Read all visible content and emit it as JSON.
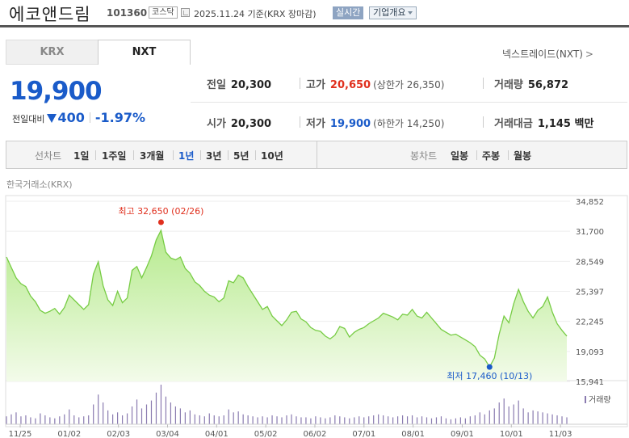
{
  "header": {
    "stock_name": "에코앤드림",
    "stock_code": "101360",
    "market_badge": "코스닥",
    "basis_text": "2025.11.24 기준(KRX 장마감)",
    "realtime_label": "실시간",
    "company_overview_label": "기업개요"
  },
  "tabs": [
    {
      "label": "KRX",
      "active": false
    },
    {
      "label": "NXT",
      "active": true
    }
  ],
  "nxt_link": {
    "label": "넥스트레이드(NXT)",
    "arrow": ">"
  },
  "price": {
    "current": "19,900",
    "change_label": "전일대비",
    "change_amount": "400",
    "change_percent": "-1.97%",
    "direction": "down"
  },
  "info": {
    "prev_close": {
      "label": "전일",
      "value": "20,300"
    },
    "high": {
      "label": "고가",
      "value": "20,650",
      "sub": "(상한가 26,350)"
    },
    "volume": {
      "label": "거래량",
      "value": "56,872"
    },
    "open": {
      "label": "시가",
      "value": "20,300"
    },
    "low": {
      "label": "저가",
      "value": "19,900",
      "sub": "(하한가 14,250)"
    },
    "trade_value": {
      "label": "거래대금",
      "value": "1,145",
      "unit": "백만"
    }
  },
  "toolbar": {
    "line_chart_label": "선차트",
    "line_periods": [
      "1일",
      "1주일",
      "3개월",
      "1년",
      "3년",
      "5년",
      "10년"
    ],
    "active_period": "1년",
    "candle_chart_label": "봉차트",
    "candle_periods": [
      "일봉",
      "주봉",
      "월봉"
    ]
  },
  "exchange_label": "한국거래소(KRX)",
  "chart_data": {
    "type": "area",
    "y_axis_ticks": [
      "34,852",
      "31,700",
      "28,549",
      "25,397",
      "22,245",
      "19,093",
      "15,941"
    ],
    "ylim": [
      15941,
      34852
    ],
    "x_labels": [
      "11/25",
      "01/02",
      "02/03",
      "03/04",
      "04/01",
      "05/02",
      "06/02",
      "07/01",
      "08/01",
      "09/01",
      "10/01",
      "11/03"
    ],
    "series": [
      {
        "values": [
          29000,
          27900,
          26800,
          26200,
          25900,
          24900,
          24300,
          23400,
          23100,
          23300,
          23600,
          23000,
          23700,
          25000,
          24500,
          24000,
          23500,
          24000,
          27200,
          28500,
          26000,
          24500,
          23900,
          25400,
          24200,
          24700,
          27600,
          28000,
          26800,
          27900,
          29100,
          30800,
          31800,
          29500,
          28900,
          28700,
          29000,
          27800,
          27300,
          26400,
          26000,
          25400,
          25000,
          24800,
          24300,
          24700,
          26500,
          26300,
          27100,
          26800,
          25900,
          25100,
          24300,
          23500,
          23800,
          22800,
          22300,
          21800,
          22400,
          23200,
          23300,
          22500,
          22200,
          21600,
          21300,
          21200,
          20700,
          20400,
          20800,
          21700,
          21500,
          20600,
          21100,
          21400,
          21600,
          22000,
          22300,
          22600,
          23100,
          22900,
          22700,
          22400,
          23000,
          22900,
          23500,
          22800,
          22600,
          23200,
          22600,
          22000,
          21400,
          21100,
          20800,
          20900,
          20600,
          20300,
          20000,
          19600,
          18700,
          18300,
          17460,
          18400,
          20900,
          22800,
          22100,
          24100,
          25600,
          24300,
          23300,
          22600,
          23400,
          23800,
          24800,
          23200,
          22000,
          21300,
          20700
        ],
        "last_value": 19900
      }
    ],
    "annotations": [
      {
        "label": "최고 32,650 (02/26)",
        "value": 32650,
        "date": "02/26",
        "type": "high"
      },
      {
        "label": "최저 17,460 (10/13)",
        "value": 17460,
        "date": "10/13",
        "type": "low"
      }
    ],
    "volume": [
      8,
      10,
      12,
      8,
      9,
      7,
      6,
      11,
      9,
      7,
      6,
      8,
      10,
      15,
      9,
      7,
      8,
      9,
      20,
      30,
      22,
      14,
      10,
      12,
      9,
      11,
      18,
      25,
      16,
      20,
      24,
      32,
      40,
      28,
      22,
      18,
      16,
      12,
      14,
      10,
      9,
      8,
      11,
      9,
      8,
      9,
      15,
      12,
      13,
      10,
      9,
      8,
      7,
      8,
      7,
      9,
      8,
      7,
      9,
      10,
      8,
      7,
      7,
      6,
      8,
      7,
      6,
      7,
      9,
      8,
      7,
      6,
      7,
      8,
      7,
      8,
      9,
      10,
      9,
      8,
      7,
      8,
      9,
      8,
      9,
      7,
      8,
      7,
      6,
      7,
      8,
      6,
      5,
      6,
      7,
      6,
      8,
      9,
      12,
      10,
      14,
      16,
      22,
      26,
      18,
      20,
      24,
      16,
      12,
      14,
      13,
      12,
      11,
      10,
      9,
      8,
      7
    ],
    "volume_legend": "거래량",
    "grid": true
  }
}
